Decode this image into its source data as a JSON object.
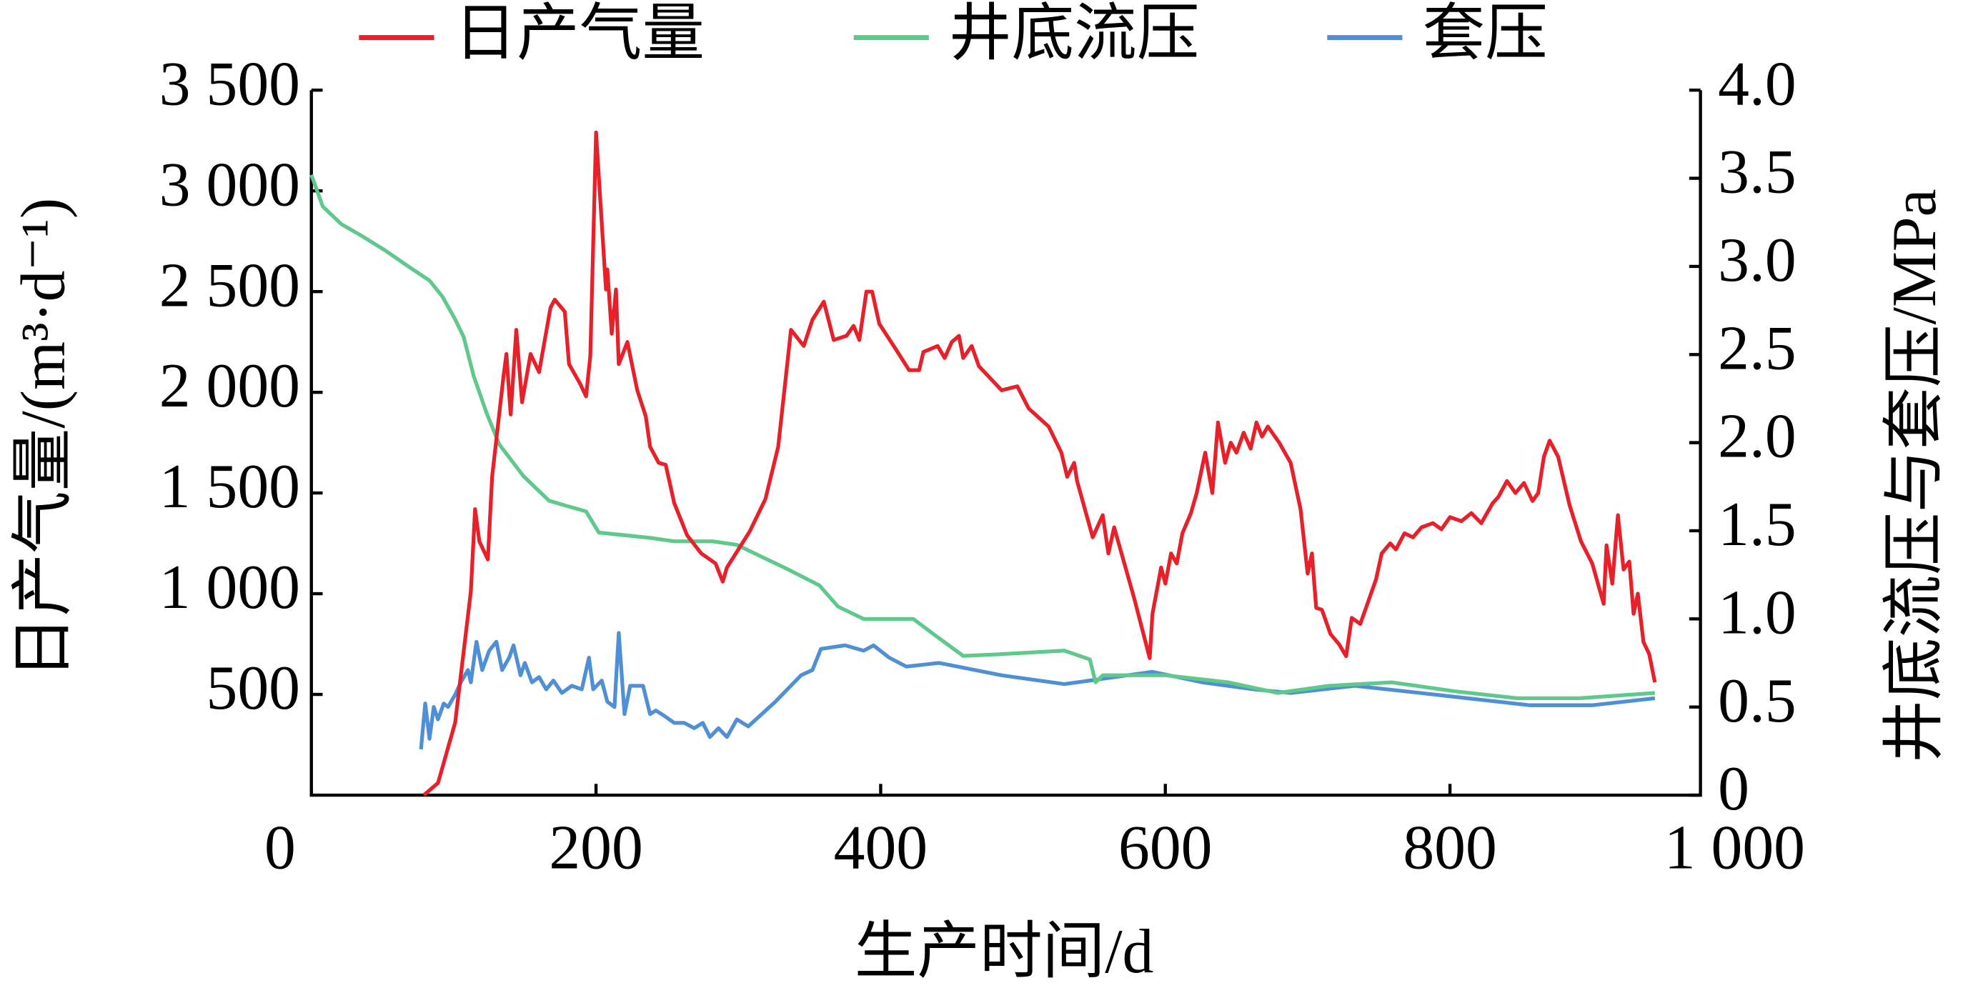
{
  "chart_data": {
    "type": "line",
    "xlabel": "生产时间/d",
    "ylabel": "日产气量/(m³·d⁻¹)",
    "y2label": "井底流压与套压/MPa",
    "xlim": [
      0,
      976
    ],
    "xticks": [
      0,
      200,
      400,
      600,
      800,
      {
        "value": 1000,
        "label": "1 000"
      }
    ],
    "ylim": [
      0,
      3500
    ],
    "yticks": [
      500,
      {
        "value": 1000,
        "label": "1 000"
      },
      {
        "value": 1500,
        "label": "1 500"
      },
      {
        "value": 2000,
        "label": "2 000"
      },
      {
        "value": 2500,
        "label": "2 500"
      },
      {
        "value": 3000,
        "label": "3 000"
      },
      {
        "value": 3500,
        "label": "3 500"
      }
    ],
    "y2lim": [
      0,
      4
    ],
    "y2ticks": [
      0,
      0.5,
      {
        "value": 1,
        "label": "1.0"
      },
      1.5,
      {
        "value": 2,
        "label": "2.0"
      },
      2.5,
      {
        "value": 3,
        "label": "3.0"
      },
      3.5,
      {
        "value": 4,
        "label": "4.0"
      }
    ],
    "series": [
      {
        "name": "日产气量",
        "color": "#e8202a",
        "x": [
          79,
          89,
          101,
          112,
          115,
          118,
          124,
          127,
          135,
          137,
          140,
          144,
          148,
          154,
          160,
          168,
          171,
          178,
          181,
          189,
          193,
          196,
          200,
          203,
          207,
          208,
          211,
          214,
          216,
          222,
          229,
          235,
          238,
          244,
          249,
          255,
          264,
          274,
          284,
          289,
          292,
          308,
          319,
          328,
          337,
          346,
          352,
          360,
          367,
          376,
          381,
          385,
          390,
          394,
          399,
          411,
          420,
          427,
          430,
          440,
          445,
          450,
          455,
          458,
          464,
          469,
          485,
          496,
          504,
          518,
          527,
          531,
          536,
          538,
          549,
          556,
          560,
          564,
          578,
          589,
          591,
          597,
          600,
          604,
          608,
          612,
          618,
          622,
          628,
          633,
          637,
          642,
          646,
          650,
          655,
          660,
          664,
          668,
          672,
          680,
          688,
          695,
          700,
          703,
          706,
          710,
          716,
          722,
          727,
          731,
          737,
          742,
          748,
          752,
          758,
          762,
          768,
          774,
          780,
          788,
          794,
          800,
          808,
          815,
          822,
          830,
          834,
          840,
          846,
          852,
          858,
          862,
          866,
          870,
          876,
          884,
          892,
          900,
          908,
          910,
          914,
          918,
          922,
          926,
          929,
          932,
          936,
          940,
          944
        ],
        "values": [
          0,
          60,
          360,
          1010,
          1420,
          1260,
          1170,
          1580,
          2080,
          2190,
          1890,
          2310,
          1950,
          2190,
          2100,
          2420,
          2460,
          2400,
          2140,
          2040,
          1980,
          2180,
          3290,
          2950,
          2510,
          2610,
          2290,
          2510,
          2140,
          2250,
          2010,
          1880,
          1730,
          1650,
          1640,
          1450,
          1290,
          1200,
          1150,
          1060,
          1130,
          1310,
          1470,
          1730,
          2310,
          2230,
          2360,
          2450,
          2260,
          2280,
          2330,
          2260,
          2500,
          2500,
          2340,
          2210,
          2110,
          2110,
          2200,
          2230,
          2170,
          2250,
          2280,
          2170,
          2230,
          2130,
          2010,
          2030,
          1920,
          1830,
          1700,
          1580,
          1650,
          1560,
          1280,
          1390,
          1200,
          1330,
          980,
          680,
          900,
          1130,
          1050,
          1200,
          1150,
          1300,
          1400,
          1500,
          1700,
          1500,
          1850,
          1650,
          1750,
          1700,
          1800,
          1720,
          1850,
          1780,
          1830,
          1750,
          1650,
          1420,
          1100,
          1200,
          930,
          920,
          800,
          750,
          690,
          880,
          850,
          950,
          1070,
          1200,
          1250,
          1220,
          1300,
          1280,
          1330,
          1350,
          1320,
          1380,
          1360,
          1400,
          1350,
          1450,
          1480,
          1560,
          1500,
          1550,
          1460,
          1500,
          1680,
          1760,
          1680,
          1440,
          1260,
          1150,
          950,
          1240,
          1050,
          1390,
          1120,
          1160,
          900,
          1000,
          760,
          700,
          560
        ]
      },
      {
        "name": "井底流压",
        "color": "#5ec98b",
        "axis": "y2",
        "x": [
          0,
          8,
          21,
          34,
          52,
          70,
          83,
          92,
          101,
          107,
          114,
          123,
          132,
          149,
          167,
          180,
          193,
          202,
          238,
          255,
          282,
          299,
          317,
          335,
          357,
          370,
          388,
          423,
          441,
          458,
          485,
          529,
          547,
          551,
          556,
          600,
          644,
          679,
          715,
          759,
          803,
          847,
          891,
          944
        ],
        "values": [
          3.52,
          3.34,
          3.24,
          3.18,
          3.09,
          2.99,
          2.92,
          2.83,
          2.7,
          2.6,
          2.38,
          2.17,
          1.99,
          1.81,
          1.67,
          1.64,
          1.61,
          1.49,
          1.46,
          1.44,
          1.44,
          1.42,
          1.35,
          1.28,
          1.19,
          1.07,
          1.0,
          1.0,
          0.89,
          0.79,
          0.8,
          0.82,
          0.77,
          0.64,
          0.68,
          0.68,
          0.64,
          0.58,
          0.62,
          0.64,
          0.59,
          0.55,
          0.55,
          0.58
        ]
      },
      {
        "name": "套压",
        "color": "#4f8fd6",
        "axis": "y2",
        "x": [
          77,
          80,
          83,
          86,
          89,
          93,
          96,
          101,
          105,
          110,
          112,
          116,
          120,
          125,
          130,
          134,
          139,
          142,
          147,
          150,
          155,
          160,
          165,
          170,
          176,
          183,
          190,
          195,
          198,
          204,
          208,
          213,
          216,
          220,
          224,
          233,
          238,
          242,
          248,
          255,
          262,
          269,
          275,
          280,
          286,
          292,
          299,
          307,
          326,
          344,
          352,
          358,
          375,
          388,
          395,
          406,
          418,
          441,
          485,
          529,
          556,
          591,
          626,
          662,
          688,
          733,
          768,
          812,
          856,
          900,
          944
        ],
        "values": [
          0.26,
          0.52,
          0.32,
          0.5,
          0.43,
          0.52,
          0.5,
          0.57,
          0.64,
          0.71,
          0.64,
          0.87,
          0.71,
          0.82,
          0.87,
          0.71,
          0.78,
          0.85,
          0.68,
          0.75,
          0.64,
          0.67,
          0.6,
          0.65,
          0.58,
          0.62,
          0.6,
          0.78,
          0.6,
          0.65,
          0.53,
          0.5,
          0.92,
          0.46,
          0.62,
          0.62,
          0.46,
          0.48,
          0.45,
          0.41,
          0.41,
          0.38,
          0.41,
          0.33,
          0.38,
          0.33,
          0.43,
          0.39,
          0.53,
          0.68,
          0.71,
          0.83,
          0.85,
          0.82,
          0.85,
          0.78,
          0.73,
          0.75,
          0.68,
          0.63,
          0.66,
          0.7,
          0.64,
          0.6,
          0.58,
          0.62,
          0.59,
          0.55,
          0.51,
          0.51,
          0.55
        ]
      }
    ]
  }
}
